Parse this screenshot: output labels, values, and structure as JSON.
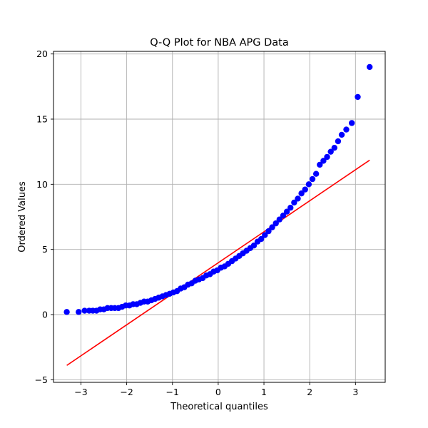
{
  "chart_data": {
    "type": "scatter",
    "title": "Q-Q Plot for NBA APG Data",
    "xlabel": "Theoretical quantiles",
    "ylabel": "Ordered Values",
    "xlim": [
      -3.6,
      3.65
    ],
    "ylim": [
      -5.2,
      20.2
    ],
    "xticks": [
      -3,
      -2,
      -1,
      0,
      1,
      2,
      3
    ],
    "yticks": [
      -5,
      0,
      5,
      10,
      15,
      20
    ],
    "xtick_labels": [
      "−3",
      "−2",
      "−1",
      "0",
      "1",
      "2",
      "3"
    ],
    "ytick_labels": [
      "−5",
      "0",
      "5",
      "10",
      "15",
      "20"
    ],
    "grid": true,
    "colors": {
      "points": "#0000ff",
      "fit_line": "#ff0000"
    },
    "series": [
      {
        "kind": "points",
        "x": [
          -3.31,
          -3.05,
          -2.92,
          -2.82,
          -2.74,
          -2.66,
          -2.58,
          -2.5,
          -2.42,
          -2.34,
          -2.26,
          -2.18,
          -2.1,
          -2.02,
          -1.94,
          -1.86,
          -1.78,
          -1.7,
          -1.62,
          -1.54,
          -1.46,
          -1.38,
          -1.3,
          -1.22,
          -1.14,
          -1.06,
          -0.98,
          -0.9,
          -0.82,
          -0.74,
          -0.66,
          -0.58,
          -0.5,
          -0.42,
          -0.34,
          -0.26,
          -0.18,
          -0.1,
          -0.02,
          0.06,
          0.14,
          0.22,
          0.3,
          0.38,
          0.46,
          0.54,
          0.62,
          0.7,
          0.78,
          0.86,
          0.94,
          1.02,
          1.1,
          1.18,
          1.26,
          1.34,
          1.42,
          1.5,
          1.58,
          1.66,
          1.74,
          1.82,
          1.9,
          1.98,
          2.06,
          2.14,
          2.22,
          2.3,
          2.38,
          2.46,
          2.54,
          2.62,
          2.7,
          2.8,
          2.92,
          3.05,
          3.31
        ],
        "y": [
          0.2,
          0.2,
          0.3,
          0.3,
          0.3,
          0.3,
          0.4,
          0.4,
          0.5,
          0.5,
          0.5,
          0.5,
          0.6,
          0.7,
          0.7,
          0.8,
          0.8,
          0.9,
          1.0,
          1.0,
          1.1,
          1.2,
          1.3,
          1.4,
          1.5,
          1.6,
          1.7,
          1.8,
          2.0,
          2.1,
          2.3,
          2.4,
          2.6,
          2.7,
          2.8,
          3.0,
          3.1,
          3.3,
          3.4,
          3.6,
          3.7,
          3.9,
          4.1,
          4.3,
          4.5,
          4.7,
          4.9,
          5.1,
          5.3,
          5.6,
          5.8,
          6.1,
          6.4,
          6.7,
          7.0,
          7.3,
          7.6,
          7.9,
          8.2,
          8.6,
          8.9,
          9.3,
          9.6,
          10.0,
          10.4,
          10.8,
          11.5,
          11.8,
          12.1,
          12.5,
          12.8,
          13.3,
          13.8,
          14.2,
          14.7,
          16.7,
          19.0
        ]
      },
      {
        "kind": "fit-line",
        "x": [
          -3.31,
          3.31
        ],
        "y": [
          -3.9,
          11.85
        ]
      }
    ]
  }
}
